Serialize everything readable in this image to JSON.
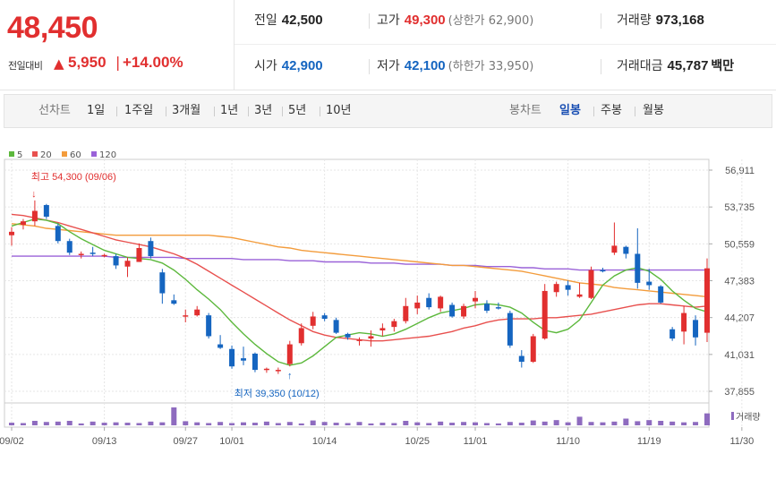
{
  "summary": {
    "current_price": "48,450",
    "change_label": "전일대비",
    "change_arrow": "▲",
    "change_value": "5,950",
    "change_sep": "|",
    "change_pct": "+14.00%",
    "prev_close_label": "전일",
    "prev_close": "42,500",
    "high_label": "고가",
    "high": "49,300",
    "upper_limit_label": "(상한가 62,900)",
    "volume_label": "거래량",
    "volume": "973,168",
    "open_label": "시가",
    "open": "42,900",
    "low_label": "저가",
    "low": "42,100",
    "lower_limit_label": "(하한가 33,950)",
    "amount_label": "거래대금",
    "amount": "45,787",
    "amount_unit": "백만"
  },
  "period_bar": {
    "line_chart_label": "선차트",
    "periods": [
      "1일",
      "1주일",
      "3개월",
      "1년",
      "3년",
      "5년",
      "10년"
    ],
    "candle_chart_label": "봉차트",
    "candle_periods": [
      "일봉",
      "주봉",
      "월봉"
    ],
    "active_candle_period": "일봉"
  },
  "colors": {
    "up": "#e12f2f",
    "down": "#1565c0",
    "ma5": "#5cb83c",
    "ma20": "#e8504e",
    "ma60": "#f39c3c",
    "ma120": "#9a62d8",
    "volume": "#8e6bbf"
  },
  "chart_data": {
    "type": "candlestick",
    "title": "",
    "legend": [
      {
        "name": "5",
        "color": "#5cb83c"
      },
      {
        "name": "20",
        "color": "#e8504e"
      },
      {
        "name": "60",
        "color": "#f39c3c"
      },
      {
        "name": "120",
        "color": "#9a62d8"
      }
    ],
    "legend_placement": "top-left",
    "ylim": [
      37855,
      56911
    ],
    "y_ticks": [
      "56,911",
      "53,735",
      "50,559",
      "47,383",
      "44,207",
      "41,031",
      "37,855"
    ],
    "x_tick_labels": [
      {
        "i": 0,
        "label": "09/02"
      },
      {
        "i": 8,
        "label": "09/13"
      },
      {
        "i": 15,
        "label": "09/27"
      },
      {
        "i": 19,
        "label": "10/01"
      },
      {
        "i": 27,
        "label": "10/14"
      },
      {
        "i": 35,
        "label": "10/25"
      },
      {
        "i": 40,
        "label": "11/01"
      },
      {
        "i": 48,
        "label": "11/10"
      },
      {
        "i": 55,
        "label": "11/19"
      },
      {
        "i": 63,
        "label": "11/30"
      }
    ],
    "annotations": {
      "high": {
        "i": 2,
        "text": "최고 54,300 (09/06)",
        "arrow": "↓"
      },
      "low": {
        "i": 24,
        "text": "최저 39,350 (10/12)",
        "arrow": "↑"
      }
    },
    "candles": [
      {
        "o": 51300,
        "h": 52000,
        "l": 50400,
        "c": 51600
      },
      {
        "o": 52200,
        "h": 52700,
        "l": 51800,
        "c": 52500
      },
      {
        "o": 52500,
        "h": 54300,
        "l": 52100,
        "c": 53400
      },
      {
        "o": 53900,
        "h": 54000,
        "l": 52700,
        "c": 52900
      },
      {
        "o": 52100,
        "h": 52300,
        "l": 50600,
        "c": 50800
      },
      {
        "o": 50800,
        "h": 51000,
        "l": 49600,
        "c": 49800
      },
      {
        "o": 49700,
        "h": 49900,
        "l": 49300,
        "c": 49700
      },
      {
        "o": 49800,
        "h": 50300,
        "l": 49500,
        "c": 49700
      },
      {
        "o": 49600,
        "h": 49700,
        "l": 49400,
        "c": 49600
      },
      {
        "o": 49500,
        "h": 49700,
        "l": 48400,
        "c": 48700
      },
      {
        "o": 48600,
        "h": 49400,
        "l": 47700,
        "c": 49100
      },
      {
        "o": 49000,
        "h": 50600,
        "l": 49000,
        "c": 50200
      },
      {
        "o": 50800,
        "h": 51100,
        "l": 49300,
        "c": 49500
      },
      {
        "o": 48100,
        "h": 48400,
        "l": 45400,
        "c": 46300
      },
      {
        "o": 45700,
        "h": 46200,
        "l": 45300,
        "c": 45400
      },
      {
        "o": 44300,
        "h": 44900,
        "l": 43800,
        "c": 44400
      },
      {
        "o": 44400,
        "h": 45200,
        "l": 44300,
        "c": 44900
      },
      {
        "o": 44400,
        "h": 44600,
        "l": 42400,
        "c": 42600
      },
      {
        "o": 41900,
        "h": 42700,
        "l": 41500,
        "c": 41600
      },
      {
        "o": 41500,
        "h": 41800,
        "l": 39800,
        "c": 40000
      },
      {
        "o": 40700,
        "h": 41700,
        "l": 40100,
        "c": 40500
      },
      {
        "o": 41100,
        "h": 41200,
        "l": 39500,
        "c": 39700
      },
      {
        "o": 39700,
        "h": 39900,
        "l": 39450,
        "c": 39800
      },
      {
        "o": 39600,
        "h": 39900,
        "l": 39350,
        "c": 39700
      },
      {
        "o": 40200,
        "h": 42200,
        "l": 40000,
        "c": 41900
      },
      {
        "o": 42000,
        "h": 43700,
        "l": 41800,
        "c": 43300
      },
      {
        "o": 43500,
        "h": 44700,
        "l": 43200,
        "c": 44300
      },
      {
        "o": 44400,
        "h": 44600,
        "l": 43900,
        "c": 44100
      },
      {
        "o": 44000,
        "h": 44200,
        "l": 42800,
        "c": 42900
      },
      {
        "o": 42800,
        "h": 42900,
        "l": 42300,
        "c": 42500
      },
      {
        "o": 42300,
        "h": 42500,
        "l": 41800,
        "c": 42300
      },
      {
        "o": 42400,
        "h": 43100,
        "l": 41700,
        "c": 42600
      },
      {
        "o": 43100,
        "h": 43700,
        "l": 42600,
        "c": 43300
      },
      {
        "o": 43400,
        "h": 44100,
        "l": 43000,
        "c": 43900
      },
      {
        "o": 43900,
        "h": 45900,
        "l": 43700,
        "c": 45200
      },
      {
        "o": 45000,
        "h": 46100,
        "l": 44500,
        "c": 45500
      },
      {
        "o": 45900,
        "h": 46300,
        "l": 44900,
        "c": 45100
      },
      {
        "o": 45000,
        "h": 46100,
        "l": 44700,
        "c": 46000
      },
      {
        "o": 45300,
        "h": 45500,
        "l": 44200,
        "c": 44300
      },
      {
        "o": 44300,
        "h": 45400,
        "l": 44100,
        "c": 45200
      },
      {
        "o": 45600,
        "h": 46500,
        "l": 45000,
        "c": 45900
      },
      {
        "o": 45400,
        "h": 45700,
        "l": 44600,
        "c": 44800
      },
      {
        "o": 45100,
        "h": 45500,
        "l": 44900,
        "c": 45000
      },
      {
        "o": 44600,
        "h": 44800,
        "l": 41600,
        "c": 41800
      },
      {
        "o": 40900,
        "h": 41400,
        "l": 39900,
        "c": 40400
      },
      {
        "o": 40400,
        "h": 42800,
        "l": 40300,
        "c": 42600
      },
      {
        "o": 42400,
        "h": 47100,
        "l": 42300,
        "c": 46500
      },
      {
        "o": 46400,
        "h": 47300,
        "l": 46000,
        "c": 47100
      },
      {
        "o": 47000,
        "h": 47400,
        "l": 46100,
        "c": 46600
      },
      {
        "o": 46000,
        "h": 47200,
        "l": 45900,
        "c": 46200
      },
      {
        "o": 45900,
        "h": 48600,
        "l": 45800,
        "c": 48300
      },
      {
        "o": 48300,
        "h": 48500,
        "l": 48100,
        "c": 48200
      },
      {
        "o": 49800,
        "h": 52400,
        "l": 49600,
        "c": 50400
      },
      {
        "o": 50300,
        "h": 50400,
        "l": 49300,
        "c": 49700
      },
      {
        "o": 49700,
        "h": 51900,
        "l": 46700,
        "c": 47200
      },
      {
        "o": 47300,
        "h": 48400,
        "l": 46600,
        "c": 47000
      },
      {
        "o": 46900,
        "h": 47000,
        "l": 45400,
        "c": 45500
      },
      {
        "o": 43200,
        "h": 43400,
        "l": 42200,
        "c": 42400
      },
      {
        "o": 43000,
        "h": 45200,
        "l": 41900,
        "c": 44600
      },
      {
        "o": 44000,
        "h": 44400,
        "l": 41800,
        "c": 42500
      },
      {
        "o": 42900,
        "h": 49300,
        "l": 42100,
        "c": 48450
      }
    ],
    "ma5": [
      52100,
      52400,
      52700,
      52600,
      52300,
      51600,
      51000,
      50500,
      50000,
      49700,
      49400,
      49300,
      49200,
      48900,
      48300,
      47500,
      46600,
      45800,
      44900,
      43800,
      42800,
      41900,
      41100,
      40400,
      40100,
      40300,
      40900,
      41700,
      42500,
      42700,
      42900,
      42800,
      42600,
      42800,
      43200,
      43700,
      44200,
      44600,
      44800,
      45000,
      45300,
      45400,
      45300,
      45100,
      44600,
      43800,
      43100,
      42900,
      43200,
      44000,
      45500,
      47000,
      47800,
      48300,
      48500,
      48200,
      47500,
      46500,
      45700,
      45000,
      44700
    ],
    "ma20": [
      53100,
      53000,
      52800,
      52600,
      52400,
      52100,
      51800,
      51500,
      51200,
      50900,
      50700,
      50500,
      50300,
      50000,
      49700,
      49300,
      48800,
      48200,
      47600,
      47000,
      46400,
      45800,
      45200,
      44600,
      44000,
      43500,
      43000,
      42700,
      42500,
      42400,
      42300,
      42200,
      42200,
      42300,
      42400,
      42500,
      42600,
      42800,
      43000,
      43300,
      43500,
      43800,
      44000,
      44100,
      44100,
      44100,
      44200,
      44200,
      44300,
      44400,
      44500,
      44700,
      44900,
      45100,
      45300,
      45400,
      45400,
      45300,
      45200,
      45100,
      45200
    ],
    "ma60": [
      52300,
      52200,
      52100,
      51900,
      51800,
      51700,
      51600,
      51500,
      51400,
      51300,
      51300,
      51300,
      51300,
      51300,
      51300,
      51300,
      51300,
      51300,
      51200,
      51100,
      50900,
      50700,
      50500,
      50300,
      50200,
      50000,
      49900,
      49800,
      49700,
      49600,
      49500,
      49400,
      49300,
      49200,
      49100,
      49000,
      48900,
      48800,
      48700,
      48700,
      48600,
      48500,
      48400,
      48300,
      48200,
      48000,
      47800,
      47600,
      47400,
      47200,
      47100,
      47000,
      46800,
      46700,
      46600,
      46500,
      46400,
      46300,
      46200,
      46100,
      46000
    ],
    "ma120": [
      49500,
      49500,
      49500,
      49500,
      49500,
      49500,
      49500,
      49500,
      49500,
      49400,
      49400,
      49400,
      49400,
      49400,
      49400,
      49300,
      49300,
      49300,
      49300,
      49300,
      49200,
      49200,
      49200,
      49200,
      49100,
      49100,
      49100,
      49000,
      49000,
      49000,
      49000,
      48900,
      48900,
      48900,
      48800,
      48800,
      48800,
      48800,
      48700,
      48700,
      48700,
      48600,
      48600,
      48600,
      48500,
      48500,
      48400,
      48400,
      48400,
      48300,
      48300,
      48300,
      48300,
      48300,
      48300,
      48300,
      48300,
      48300,
      48300,
      48300,
      48300
    ],
    "volume_label": "거래량",
    "volume": [
      7,
      6,
      12,
      9,
      10,
      12,
      5,
      10,
      7,
      8,
      7,
      6,
      10,
      8,
      48,
      11,
      8,
      6,
      9,
      6,
      8,
      7,
      10,
      6,
      9,
      5,
      13,
      9,
      7,
      6,
      9,
      5,
      7,
      6,
      12,
      8,
      6,
      10,
      7,
      9,
      8,
      6,
      5,
      9,
      7,
      13,
      10,
      14,
      8,
      23,
      9,
      8,
      10,
      18,
      11,
      14,
      12,
      10,
      8,
      9,
      32
    ]
  }
}
